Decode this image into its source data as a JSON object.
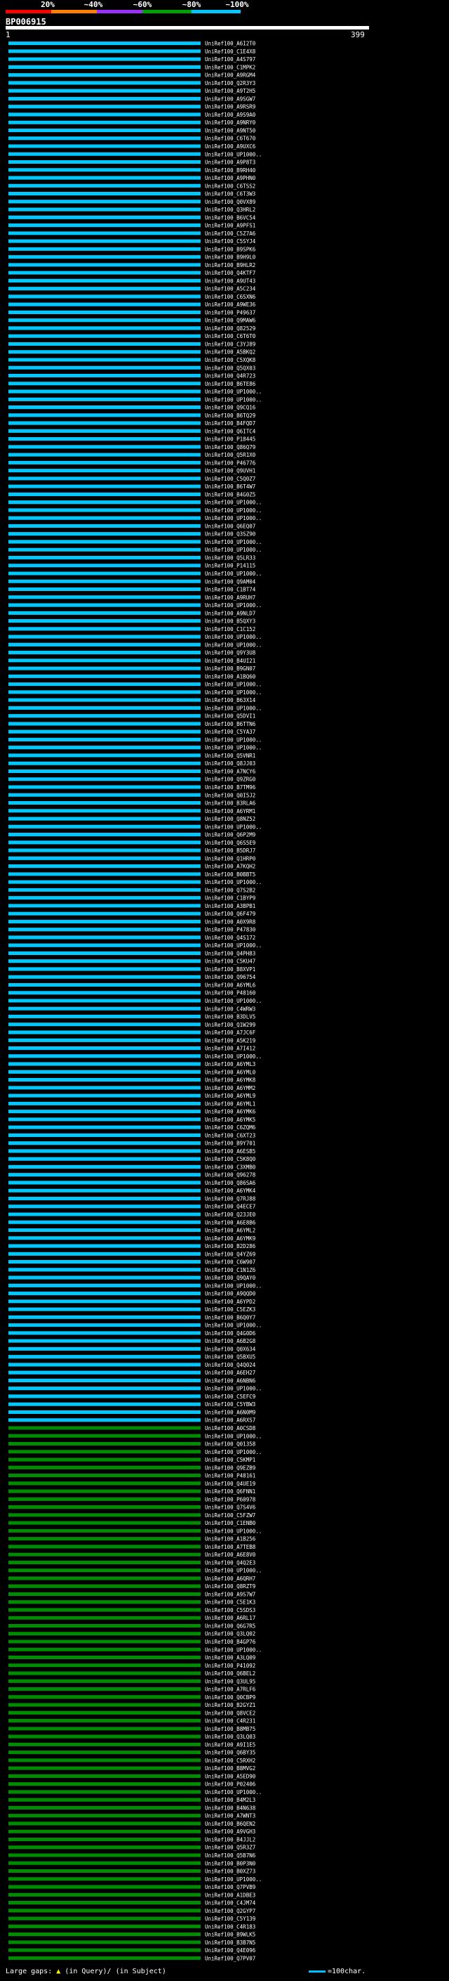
{
  "legend": {
    "percents": [
      "20%",
      "~40%",
      "~60%",
      "~80%",
      "~100%"
    ],
    "colors": [
      "#ff0000",
      "#ff8000",
      "#9b30ff",
      "#00a000",
      "#00c8ff"
    ]
  },
  "query": {
    "id": "BP006915",
    "start": "1",
    "end": "399"
  },
  "footer": {
    "text": "Large gaps:",
    "marker_label": "(in Query)/",
    "tail": "(in Subject)",
    "scale_text": "=100char."
  },
  "chart_data": {
    "type": "alignment-overview",
    "query_length": 399,
    "hit_color_blue": "#00c8ff",
    "hit_color_green": "#008c00",
    "hits": [
      "UniRef100_A6I2T0",
      "UniRef100_C1E4X8",
      "UniRef100_A4S797",
      "UniRef100_C1MPK2",
      "UniRef100_A9RGM4",
      "UniRef100_Q2R3Y3",
      "UniRef100_A9T2H5",
      "UniRef100_A9SGW7",
      "UniRef100_A9RSR9",
      "UniRef100_A9S9A0",
      "UniRef100_A9NRY0",
      "UniRef100_A9NT50",
      "UniRef100_C6T670",
      "UniRef100_A9UXC6",
      "UniRef100_UP1000..",
      "UniRef100_A9P8T3",
      "UniRef100_B9RH40",
      "UniRef100_A9PHN0",
      "UniRef100_C6TSS2",
      "UniRef100_C6T3W3",
      "UniRef100_Q0VX89",
      "UniRef100_Q3HRL2",
      "UniRef100_B6VC54",
      "UniRef100_A9PFS1",
      "UniRef100_C5Z7A6",
      "UniRef100_C5SYJ4",
      "UniRef100_B9SPK6",
      "UniRef100_B9H9L0",
      "UniRef100_B9HLR2",
      "UniRef100_Q4KTF7",
      "UniRef100_A9UT43",
      "UniRef100_A5C234",
      "UniRef100_C6SXN6",
      "UniRef100_A9WE36",
      "UniRef100_P49637",
      "UniRef100_Q9MAW6",
      "UniRef100_Q82529",
      "UniRef100_C6T6T0",
      "UniRef100_C3YJ89",
      "UniRef100_A5BKQ2",
      "UniRef100_C5XQK8",
      "UniRef100_Q5QX03",
      "UniRef100_Q4R723",
      "UniRef100_B6TE86",
      "UniRef100_UP1000..",
      "UniRef100_UP1000..",
      "UniRef100_Q9CQ16",
      "UniRef100_B6TQ29",
      "UniRef100_B4FQD7",
      "UniRef100_Q6ITC4",
      "UniRef100_P18445",
      "UniRef100_Q86Q79",
      "UniRef100_Q5R1X0",
      "UniRef100_P46776",
      "UniRef100_Q9UVH1",
      "UniRef100_C5Q0Z7",
      "UniRef100_B6T4W7",
      "UniRef100_B4G0Z5",
      "UniRef100_UP1000..",
      "UniRef100_UP1000..",
      "UniRef100_UP1000..",
      "UniRef100_Q6EQ07",
      "UniRef100_Q3SZ90",
      "UniRef100_UP1000..",
      "UniRef100_UP1000..",
      "UniRef100_Q5LR33",
      "UniRef100_P14115",
      "UniRef100_UP1000..",
      "UniRef100_Q9AM04",
      "UniRef100_C1BT74",
      "UniRef100_A9RUH7",
      "UniRef100_UP1000..",
      "UniRef100_A9NLD7",
      "UniRef100_B5QXY3",
      "UniRef100_C1C152",
      "UniRef100_UP1000..",
      "UniRef100_UP1000..",
      "UniRef100_Q9Y3U8",
      "UniRef100_B4UI21",
      "UniRef100_B9GN07",
      "UniRef100_A1BQ60",
      "UniRef100_UP1000..",
      "UniRef100_UP1000..",
      "UniRef100_B63X14",
      "UniRef100_UP1000..",
      "UniRef100_Q5DVI1",
      "UniRef100_B6TTN6",
      "UniRef100_C5YA37",
      "UniRef100_UP1000..",
      "UniRef100_UP1000..",
      "UniRef100_Q5VNR1",
      "UniRef100_Q8JJ03",
      "UniRef100_A7NCY6",
      "UniRef100_Q9ZRG0",
      "UniRef100_B7TM96",
      "UniRef100_Q0I5J2",
      "UniRef100_B3RLA6",
      "UniRef100_A6YRM1",
      "UniRef100_Q8NZ52",
      "UniRef100_UP1000..",
      "UniRef100_Q6P2M9",
      "UniRef100_Q6S5E9",
      "UniRef100_B5DRJ7",
      "UniRef100_Q1HRP0",
      "UniRef100_A7KQH2",
      "UniRef100_B0BBT5",
      "UniRef100_UP1000..",
      "UniRef100_Q7S2B2",
      "UniRef100_C1BYP9",
      "UniRef100_A3BPB1",
      "UniRef100_Q6F479",
      "UniRef100_A0X9R8",
      "UniRef100_P47830",
      "UniRef100_Q4S172",
      "UniRef100_UP1000..",
      "UniRef100_Q4PH83",
      "UniRef100_C5KU47",
      "UniRef100_B8XVP1",
      "UniRef100_Q96754",
      "UniRef100_A6YML6",
      "UniRef100_P48160",
      "UniRef100_UP1000..",
      "UniRef100_C4WRW3",
      "UniRef100_B3DLV5",
      "UniRef100_Q1W299",
      "UniRef100_A7JC6F",
      "UniRef100_A5K219",
      "UniRef100_A7I412",
      "UniRef100_UP1000..",
      "UniRef100_A6YML3",
      "UniRef100_A6YML0",
      "UniRef100_A6YMK8",
      "UniRef100_A6YMM2",
      "UniRef100_A6YML9",
      "UniRef100_A6YML1",
      "UniRef100_A6YMK6",
      "UniRef100_A6YMK5",
      "UniRef100_C6ZQM6",
      "UniRef100_C6XT23",
      "UniRef100_B9Y701",
      "UniRef100_A6ESB5",
      "UniRef100_C5K8Q0",
      "UniRef100_C3XMB0",
      "UniRef100_Q96278",
      "UniRef100_Q86SA6",
      "UniRef100_A6YMK4",
      "UniRef100_Q7RJ88",
      "UniRef100_Q4ECE7",
      "UniRef100_Q23JE0",
      "UniRef100_A6E8B6",
      "UniRef100_A6YML2",
      "UniRef100_A6YMK9",
      "UniRef100_B2D286",
      "UniRef100_Q4YZ69",
      "UniRef100_C6W907",
      "UniRef100_C1N1Z6",
      "UniRef100_Q9QAY0",
      "UniRef100_UP1000..",
      "UniRef100_A9QQD0",
      "UniRef100_A6YPD2",
      "UniRef100_C5EZK3",
      "UniRef100_B6Q0Y7",
      "UniRef100_UP1000..",
      "UniRef100_Q4G0D6",
      "UniRef100_A6B2G8",
      "UniRef100_Q0X634",
      "UniRef100_Q5BXU5",
      "UniRef100_Q4Q024",
      "UniRef100_A6EH27",
      "UniRef100_A6NBN6",
      "UniRef100_UP1000..",
      "UniRef100_C5EFC9",
      "UniRef100_C5YBW3",
      "UniRef100_A6N0M9",
      "UniRef100_A6RXS7",
      "UniRef100_A0CSD8",
      "UniRef100_UP1000..",
      "UniRef100_Q01358",
      "UniRef100_UP1000..",
      "UniRef100_C5KMP1",
      "UniRef100_Q9EZB9",
      "UniRef100_P48161",
      "UniRef100_Q4UE19",
      "UniRef100_Q6FNN1",
      "UniRef100_P60978",
      "UniRef100_Q7S4V6",
      "UniRef100_C5FZW7",
      "UniRef100_C1ENB0",
      "UniRef100_UP1000..",
      "UniRef100_A1B256",
      "UniRef100_A7TEB8",
      "UniRef100_A6E8V0",
      "UniRef100_Q4Q2E3",
      "UniRef100_UP1000..",
      "UniRef100_A6QRH7",
      "UniRef100_Q8RZT9",
      "UniRef100_A9S7W7",
      "UniRef100_C5E1K3",
      "UniRef100_C5SDS3",
      "UniRef100_A6RL17",
      "UniRef100_Q6G7R5",
      "UniRef100_Q3LQ02",
      "UniRef100_B4GP76",
      "UniRef100_UP1000..",
      "UniRef100_A3LQ09",
      "UniRef100_P41092",
      "UniRef100_Q6BEL2",
      "UniRef100_Q3UL95",
      "UniRef100_A7RLF6",
      "UniRef100_Q0CBP9",
      "UniRef100_B2GYZ1",
      "UniRef100_Q8VCE2",
      "UniRef100_C4R231",
      "UniRef100_B8MB75",
      "UniRef100_Q3LQ03",
      "UniRef100_A9I1E5",
      "UniRef100_Q6BY35",
      "UniRef100_C5RXH2",
      "UniRef100_B8MVG2",
      "UniRef100_A5ED90",
      "UniRef100_P02406",
      "UniRef100_UP1000..",
      "UniRef100_B4M2L3",
      "UniRef100_B4N638",
      "UniRef100_A7WNT3",
      "UniRef100_B6QEN2",
      "UniRef100_A9VGH3",
      "UniRef100_B4JJL2",
      "UniRef100_Q5R3Z7",
      "UniRef100_Q5B7N6",
      "UniRef100_B0P3N0",
      "UniRef100_B0XZ73",
      "UniRef100_UP1000..",
      "UniRef100_Q7PVB9",
      "UniRef100_A1DBE3",
      "UniRef100_C4JM74",
      "UniRef100_Q2GYP7",
      "UniRef100_C5Y139",
      "UniRef100_C4R183",
      "UniRef100_B9WLK5",
      "UniRef100_B3B7N5",
      "UniRef100_Q4E096",
      "UniRef100_Q7PV07"
    ]
  }
}
